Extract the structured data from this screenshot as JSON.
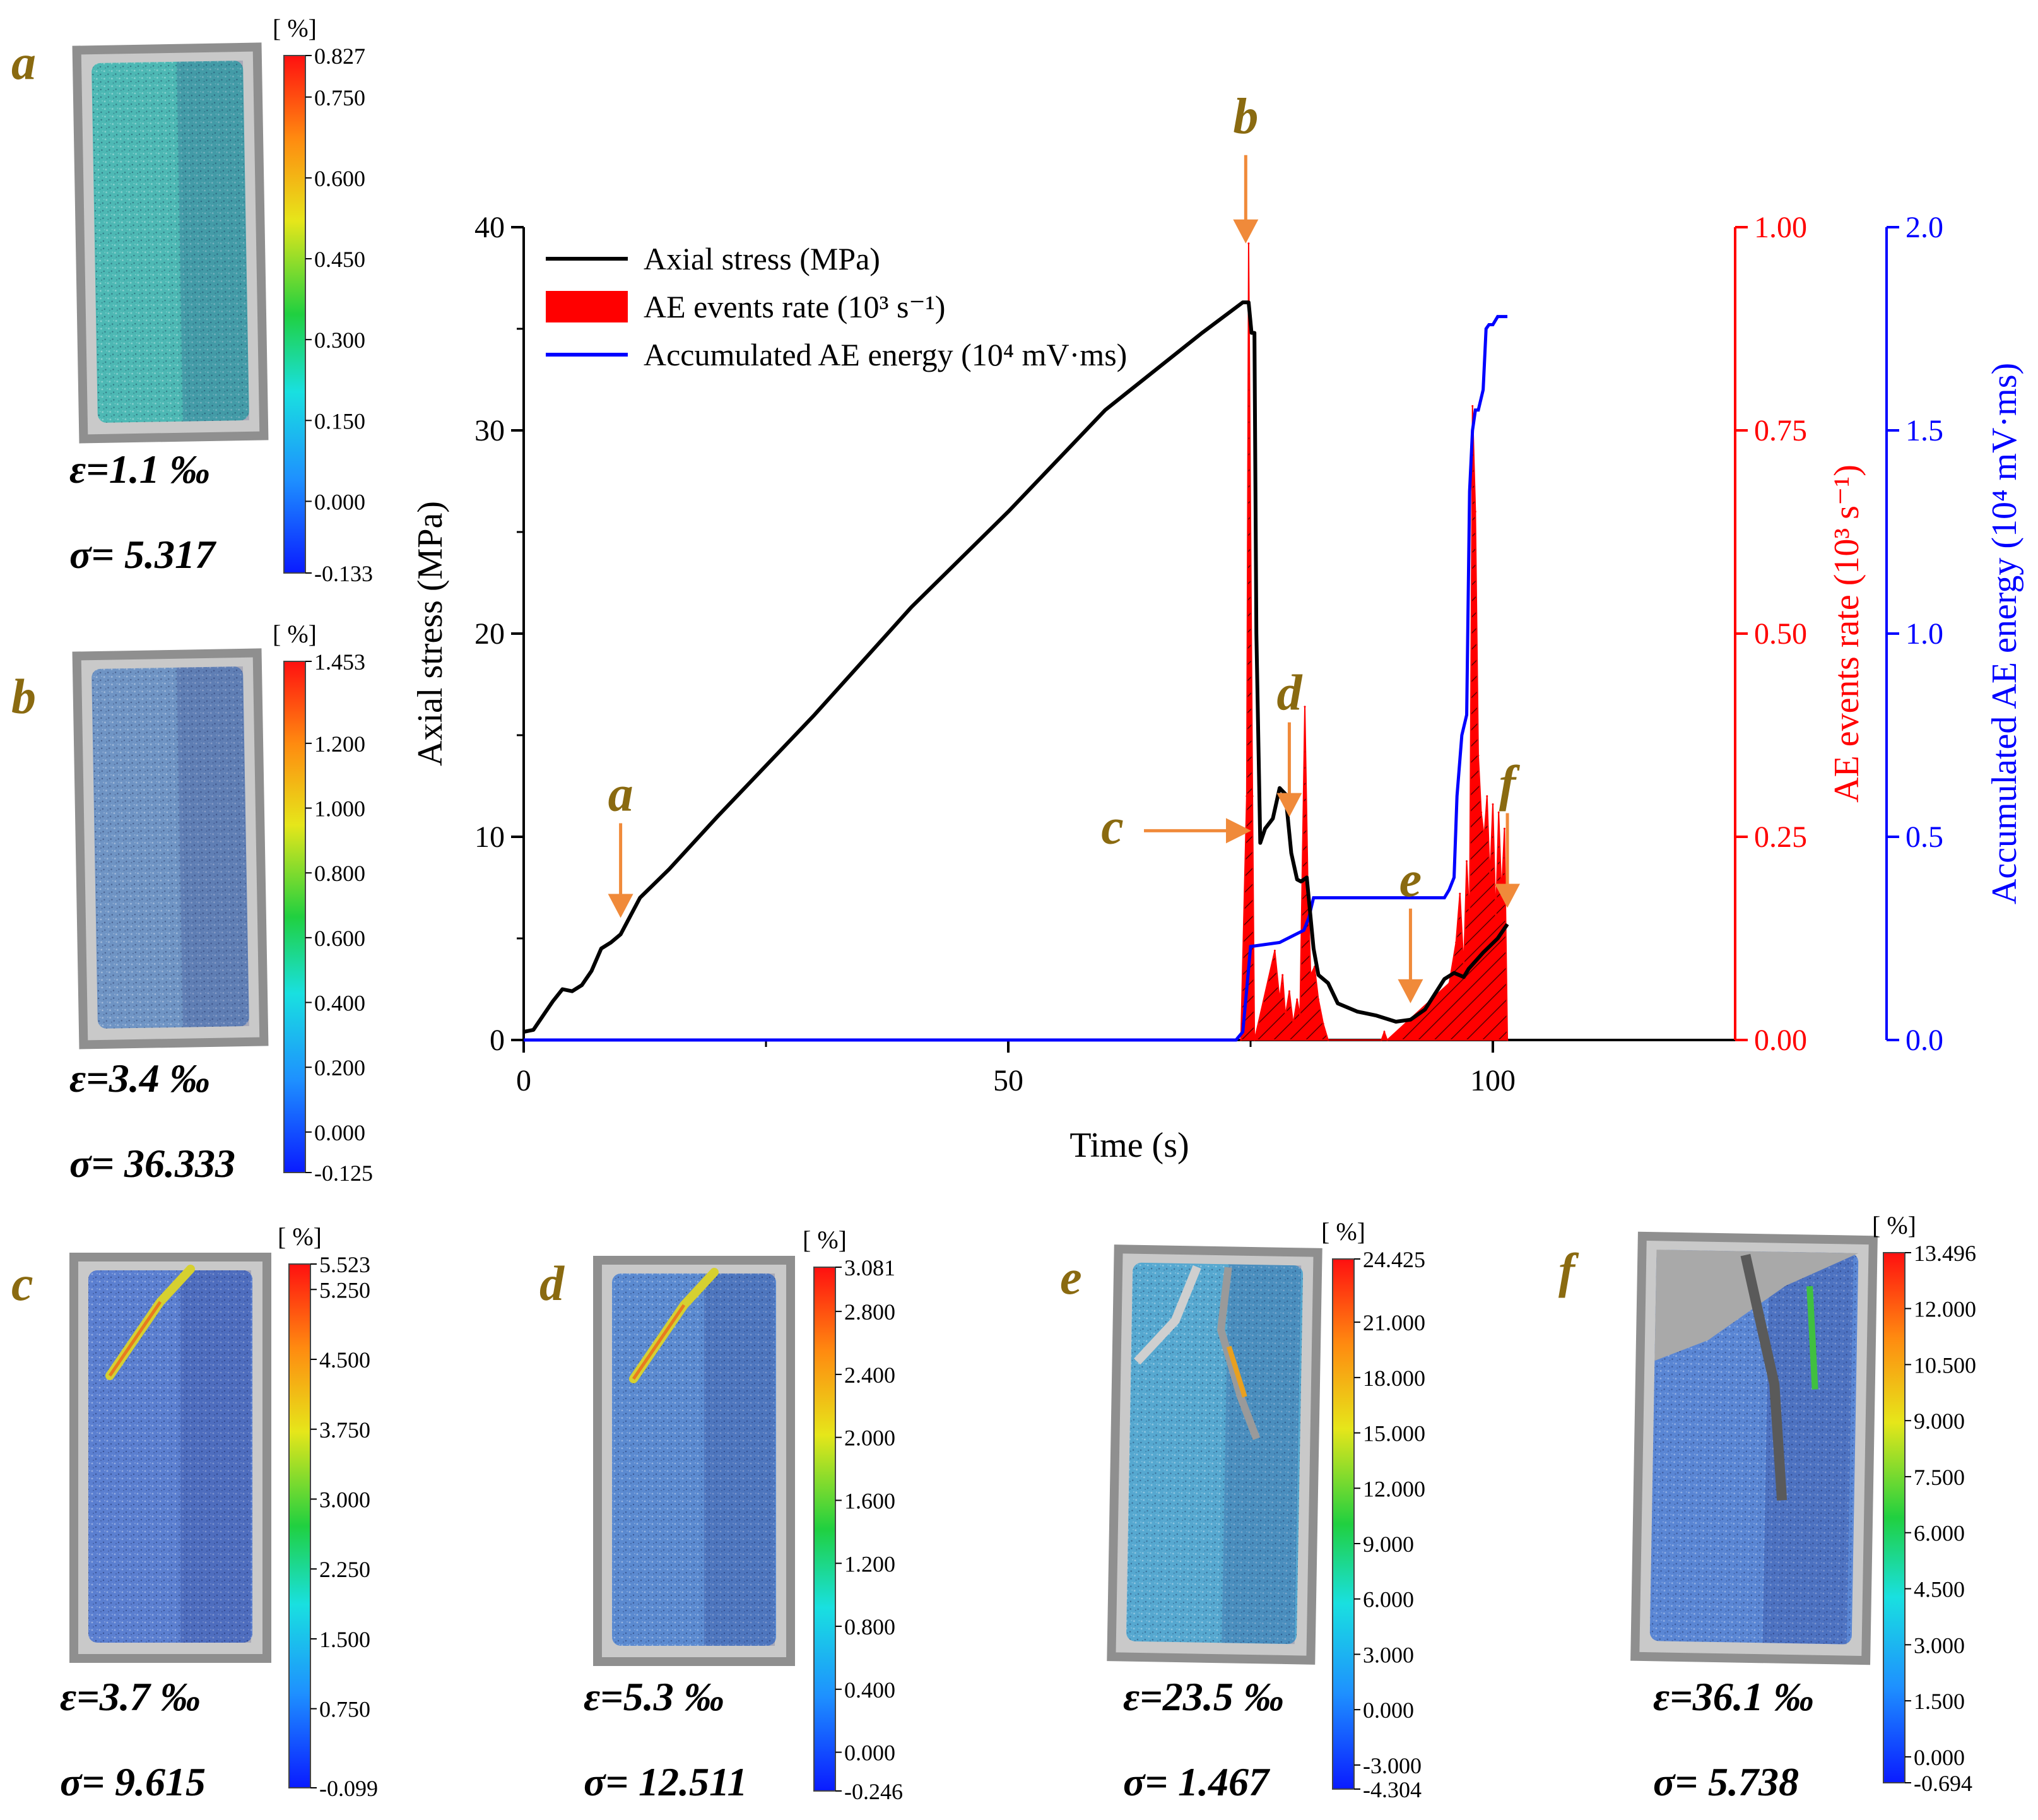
{
  "chart_data": {
    "type": "line",
    "xlabel": "Time (s)",
    "x_ticks": [
      "0",
      "50",
      "100"
    ],
    "xlim": [
      0,
      125
    ],
    "axes": {
      "left": {
        "label": "Axial stress (MPa)",
        "ticks": [
          "0",
          "10",
          "20",
          "30",
          "40"
        ],
        "lim": [
          0,
          40
        ],
        "color": "#000000"
      },
      "right1": {
        "label": "AE events rate (10³ s⁻¹)",
        "ticks": [
          "0.00",
          "0.25",
          "0.50",
          "0.75",
          "1.00"
        ],
        "lim": [
          0,
          1
        ],
        "color": "#ff0000"
      },
      "right2": {
        "label": "Accumulated AE energy (10⁴ mV·ms)",
        "ticks": [
          "0.0",
          "0.5",
          "1.0",
          "1.5",
          "2.0"
        ],
        "lim": [
          0,
          2
        ],
        "color": "#0000ff"
      }
    },
    "legend": [
      {
        "label": "Axial stress (MPa)",
        "color": "#000000",
        "kind": "line"
      },
      {
        "label": "AE events rate (10³ s⁻¹)",
        "color": "#ff0000",
        "kind": "patch"
      },
      {
        "label": "Accumulated AE energy (10⁴ mV·ms)",
        "color": "#0000ff",
        "kind": "line"
      }
    ],
    "series": [
      {
        "name": "Axial stress (MPa)",
        "axis": "left",
        "x": [
          0,
          1,
          2,
          3,
          4,
          5,
          6,
          7,
          8,
          9,
          10,
          11,
          12,
          15,
          20,
          30,
          40,
          50,
          60,
          70,
          74.2,
          74.8,
          75.1,
          75.4,
          75.6,
          76.0,
          76.5,
          77.3,
          78.0,
          78.6,
          79.2,
          79.8,
          80.2,
          80.8,
          81.5,
          82.0,
          83.0,
          84.0,
          86.0,
          88.0,
          90.0,
          91.5,
          93.0,
          95.0,
          96.0,
          97.0,
          97.5,
          99.0,
          100.5,
          101.5
        ],
        "y": [
          0.4,
          0.5,
          1.2,
          1.9,
          2.5,
          2.4,
          2.7,
          3.4,
          4.5,
          4.8,
          5.2,
          6.1,
          7.0,
          8.4,
          11.0,
          16.0,
          21.3,
          26.0,
          31.0,
          34.8,
          36.3,
          36.3,
          34.8,
          34.8,
          20.0,
          9.7,
          10.4,
          10.9,
          12.4,
          12.1,
          9.2,
          7.9,
          7.8,
          8.0,
          4.5,
          3.2,
          2.8,
          1.8,
          1.4,
          1.2,
          0.9,
          1.0,
          1.5,
          3.0,
          3.3,
          3.1,
          3.5,
          4.3,
          5.0,
          5.7
        ]
      },
      {
        "name": "AE events rate (10³ s⁻¹)",
        "axis": "right1",
        "x": [
          74.0,
          74.6,
          74.8,
          75.2,
          75.4,
          77.5,
          78.0,
          78.3,
          78.6,
          79.0,
          79.4,
          79.8,
          80.1,
          80.6,
          80.9,
          81.2,
          81.6,
          82.0,
          82.5,
          83.0,
          88.5,
          88.8,
          89.1,
          95.5,
          96.2,
          96.6,
          97.0,
          97.3,
          97.6,
          97.9,
          98.2,
          98.5,
          98.8,
          99.1,
          99.4,
          99.7,
          100.0,
          100.3,
          100.6,
          100.9,
          101.2,
          101.5
        ],
        "y": [
          0.0,
          0.3,
          0.98,
          0.3,
          0.0,
          0.11,
          0.05,
          0.08,
          0.03,
          0.06,
          0.02,
          0.05,
          0.03,
          0.41,
          0.2,
          0.08,
          0.09,
          0.05,
          0.02,
          0.0,
          0.0,
          0.01,
          0.0,
          0.07,
          0.12,
          0.18,
          0.09,
          0.22,
          0.15,
          0.78,
          0.65,
          0.35,
          0.28,
          0.25,
          0.3,
          0.2,
          0.29,
          0.15,
          0.28,
          0.18,
          0.26,
          0.0
        ]
      },
      {
        "name": "Accumulated AE energy (10⁴ mV·ms)",
        "axis": "right2",
        "x": [
          0,
          73.5,
          74.2,
          74.7,
          75.0,
          78.0,
          80.5,
          81.0,
          81.5,
          95.0,
          95.5,
          96.0,
          96.3,
          96.8,
          97.3,
          97.6,
          97.9,
          98.2,
          98.5,
          99.0,
          99.3,
          99.6,
          100.0,
          100.5,
          101.5
        ],
        "y": [
          0,
          0,
          0.02,
          0.15,
          0.23,
          0.24,
          0.27,
          0.3,
          0.35,
          0.35,
          0.37,
          0.4,
          0.6,
          0.75,
          0.8,
          1.35,
          1.5,
          1.55,
          1.55,
          1.6,
          1.75,
          1.76,
          1.76,
          1.78,
          1.78
        ]
      }
    ],
    "annotations": [
      {
        "label": "a",
        "x": 10,
        "target": "stress"
      },
      {
        "label": "b",
        "x": 74.5,
        "target": "stress-peak"
      },
      {
        "label": "c",
        "x": 76.5,
        "target": "stress-from-left"
      },
      {
        "label": "d",
        "x": 79.0,
        "target": "stress"
      },
      {
        "label": "e",
        "x": 91.5,
        "target": "stress"
      },
      {
        "label": "f",
        "x": 101.5,
        "target": "stress"
      }
    ],
    "insets": [
      {
        "id": "a",
        "unit": "[ %]",
        "cbar_ticks": [
          "0.827",
          "0.750",
          "0.600",
          "0.450",
          "0.300",
          "0.150",
          "0.000",
          "-0.133"
        ],
        "vmin": -0.133,
        "vmax": 0.827,
        "strain": "ε=1.1 ‰",
        "stress": "σ= 5.317",
        "fracture": "none",
        "tone": "#4db8b4"
      },
      {
        "id": "b",
        "unit": "[ %]",
        "cbar_ticks": [
          "1.453",
          "1.200",
          "1.000",
          "0.800",
          "0.600",
          "0.400",
          "0.200",
          "0.000",
          "-0.125"
        ],
        "vmin": -0.125,
        "vmax": 1.453,
        "strain": "ε=3.4 ‰",
        "stress": "σ= 36.333",
        "fracture": "none",
        "tone": "#6f94c4"
      },
      {
        "id": "c",
        "unit": "[ %]",
        "cbar_ticks": [
          "5.523",
          "5.250",
          "4.500",
          "3.750",
          "3.000",
          "2.250",
          "1.500",
          "0.750",
          "-0.099"
        ],
        "vmin": -0.099,
        "vmax": 5.523,
        "strain": "ε=3.7 ‰",
        "stress": "σ= 9.615",
        "fracture": "band",
        "tone": "#5b7fd0"
      },
      {
        "id": "d",
        "unit": "[ %]",
        "cbar_ticks": [
          "3.081",
          "2.800",
          "2.400",
          "2.000",
          "1.600",
          "1.200",
          "0.800",
          "0.400",
          "0.000",
          "-0.246"
        ],
        "vmin": -0.246,
        "vmax": 3.081,
        "strain": "ε=5.3 ‰",
        "stress": "σ= 12.511",
        "fracture": "band",
        "tone": "#5b8ad0"
      },
      {
        "id": "e",
        "unit": "[ %]",
        "cbar_ticks": [
          "24.425",
          "21.000",
          "18.000",
          "15.000",
          "12.000",
          "9.000",
          "6.000",
          "3.000",
          "0.000",
          "-3.000",
          "-4.304"
        ],
        "vmin": -4.304,
        "vmax": 24.425,
        "strain": "ε=23.5 ‰",
        "stress": "σ= 1.467",
        "fracture": "crack",
        "tone": "#56a8d0"
      },
      {
        "id": "f",
        "unit": "[ %]",
        "cbar_ticks": [
          "13.496",
          "12.000",
          "10.500",
          "9.000",
          "7.500",
          "6.000",
          "4.500",
          "3.000",
          "1.500",
          "0.000",
          "-0.694"
        ],
        "vmin": -0.694,
        "vmax": 13.496,
        "strain": "ε=36.1 ‰",
        "stress": "σ= 5.738",
        "fracture": "failed",
        "tone": "#5a86d4"
      }
    ]
  }
}
